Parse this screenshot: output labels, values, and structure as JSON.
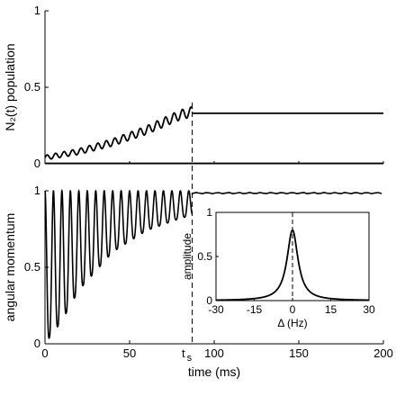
{
  "chart_data": [
    {
      "type": "line",
      "panel": "top",
      "ylabel": "N₂(t)  population",
      "xlim": [
        0,
        200
      ],
      "ylim": [
        0,
        1
      ],
      "yticks": [
        "0",
        "0.5",
        "1"
      ],
      "grid": false,
      "series": [
        {
          "x": [
            0,
            20,
            40,
            60,
            70,
            80,
            87,
            87,
            120,
            160,
            200
          ],
          "y": [
            0.04,
            0.08,
            0.14,
            0.22,
            0.27,
            0.32,
            0.34,
            0.33,
            0.33,
            0.33,
            0.33
          ],
          "oscillation_period_ms": 5,
          "oscillation_amplitude": 0.03
        }
      ],
      "reference_lines": [
        {
          "y": 0
        }
      ]
    },
    {
      "type": "line",
      "panel": "bottom",
      "ylabel": "angular momentum",
      "xlabel": "time  (ms)",
      "xlim": [
        0,
        200
      ],
      "ylim": [
        0,
        1
      ],
      "xticks": [
        "0",
        "50",
        "100",
        "150",
        "200"
      ],
      "yticks": [
        "0",
        "0.5",
        "1"
      ],
      "grid": false,
      "series": [
        {
          "x": [
            0,
            10,
            20,
            40,
            60,
            80,
            87,
            87,
            120,
            160,
            200
          ],
          "y_min": [
            0.0,
            0.15,
            0.35,
            0.6,
            0.74,
            0.82,
            0.84,
            1.0,
            1.0,
            1.0,
            1.0
          ],
          "y_max": [
            1.0,
            1.0,
            1.0,
            1.0,
            1.0,
            1.0,
            1.0,
            1.0,
            1.0,
            1.0,
            1.0
          ],
          "oscillation_period_ms": 5
        }
      ],
      "annotations": [
        {
          "text": "t",
          "subscript": "s",
          "x": 87
        }
      ]
    },
    {
      "type": "line",
      "panel": "inset",
      "ylabel": "amplitude",
      "xlabel": "Δ  (Hz)",
      "xlim": [
        -30,
        30
      ],
      "ylim": [
        0,
        1
      ],
      "xticks": [
        "-30",
        "-15",
        "0",
        "15",
        "30"
      ],
      "yticks": [
        "0",
        "0.5",
        "1"
      ],
      "grid": false,
      "series": [
        {
          "x": [
            -30,
            -20,
            -10,
            -5,
            -2,
            0,
            2,
            5,
            10,
            20,
            30
          ],
          "y": [
            0.01,
            0.02,
            0.08,
            0.2,
            0.55,
            0.8,
            0.55,
            0.2,
            0.08,
            0.02,
            0.01
          ]
        }
      ],
      "reference_lines": [
        {
          "x": 0,
          "style": "dashed"
        }
      ]
    }
  ],
  "ts_time": 87,
  "colors": {
    "line": "#000000",
    "background": "#ffffff"
  }
}
